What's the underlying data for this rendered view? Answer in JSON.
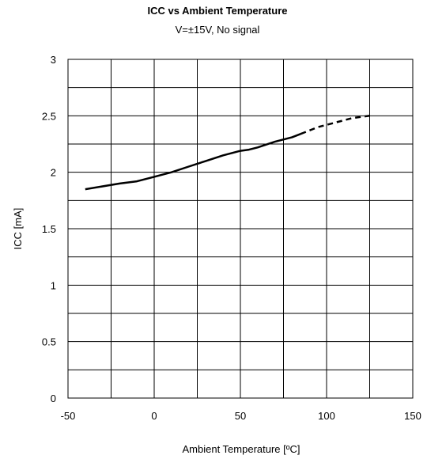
{
  "chart_data": {
    "type": "line",
    "title": "ICC vs Ambient Temperature",
    "subtitle": "V=±15V, No signal",
    "xlabel": "Ambient Temperature [ºC]",
    "ylabel": "ICC [mA]",
    "xlim": [
      -50,
      150
    ],
    "ylim": [
      0,
      3
    ],
    "x_ticks": [
      -50,
      0,
      50,
      100,
      150
    ],
    "x_tick_labels": [
      "-50",
      "0",
      "50",
      "100",
      "150"
    ],
    "y_ticks": [
      0,
      0.5,
      1,
      1.5,
      2,
      2.5,
      3
    ],
    "y_tick_labels": [
      "0",
      "0.5",
      "1",
      "1.5",
      "2",
      "2.5",
      "3"
    ],
    "grid": true,
    "series": [
      {
        "style": "solid",
        "color": "#000000",
        "x": [
          -40,
          -20,
          -10,
          0,
          10,
          20,
          30,
          40,
          50,
          55,
          60,
          70,
          80,
          85
        ],
        "y": [
          1.85,
          1.9,
          1.92,
          1.96,
          2.0,
          2.05,
          2.1,
          2.15,
          2.19,
          2.2,
          2.22,
          2.27,
          2.31,
          2.34
        ]
      },
      {
        "style": "dashed",
        "color": "#000000",
        "x": [
          85,
          95,
          105,
          115,
          125
        ],
        "y": [
          2.34,
          2.4,
          2.44,
          2.48,
          2.5
        ]
      }
    ]
  }
}
